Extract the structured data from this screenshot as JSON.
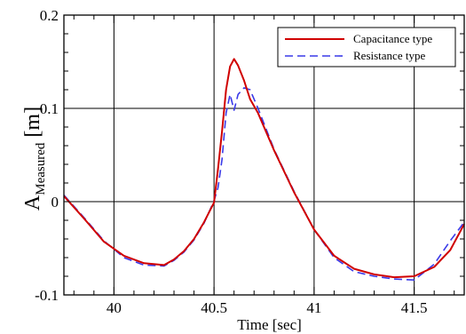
{
  "chart_data": {
    "type": "line",
    "xlabel": "Time [sec]",
    "ylabel": {
      "prefix": "A",
      "subscript": "Measured",
      "unit": "[m]"
    },
    "xlim": [
      39.75,
      41.75
    ],
    "ylim": [
      -0.1,
      0.2
    ],
    "xticks": [
      40,
      40.5,
      41,
      41.5
    ],
    "xtick_labels": [
      "40",
      "40.5",
      "41",
      "41.5"
    ],
    "yticks": [
      -0.1,
      0,
      0.1,
      0.2
    ],
    "ytick_labels": [
      "-0.1",
      "0",
      "0.1",
      "0.2"
    ],
    "grid": true,
    "legend_position": "top-right",
    "series": [
      {
        "name": "Capacitance type",
        "color": "#d00000",
        "style": "solid",
        "x": [
          39.75,
          39.85,
          39.95,
          40.05,
          40.15,
          40.25,
          40.3,
          40.35,
          40.4,
          40.45,
          40.5,
          40.52,
          40.54,
          40.56,
          40.58,
          40.6,
          40.62,
          40.65,
          40.68,
          40.72,
          40.8,
          40.9,
          41.0,
          41.1,
          41.2,
          41.3,
          41.4,
          41.5,
          41.6,
          41.68,
          41.75
        ],
        "y": [
          0.006,
          -0.018,
          -0.043,
          -0.058,
          -0.066,
          -0.068,
          -0.062,
          -0.053,
          -0.04,
          -0.022,
          -0.001,
          0.035,
          0.075,
          0.12,
          0.145,
          0.153,
          0.146,
          0.13,
          0.11,
          0.095,
          0.055,
          0.01,
          -0.03,
          -0.058,
          -0.072,
          -0.078,
          -0.081,
          -0.08,
          -0.07,
          -0.052,
          -0.024
        ]
      },
      {
        "name": "Resistance type",
        "color": "#3a3ae8",
        "style": "dashed",
        "x": [
          39.75,
          39.85,
          39.95,
          40.05,
          40.15,
          40.25,
          40.3,
          40.35,
          40.4,
          40.45,
          40.5,
          40.52,
          40.54,
          40.56,
          40.58,
          40.6,
          40.62,
          40.65,
          40.68,
          40.72,
          40.8,
          40.9,
          41.0,
          41.1,
          41.2,
          41.3,
          41.4,
          41.5,
          41.6,
          41.68,
          41.75
        ],
        "y": [
          0.007,
          -0.017,
          -0.042,
          -0.06,
          -0.068,
          -0.069,
          -0.063,
          -0.054,
          -0.041,
          -0.023,
          0.001,
          0.015,
          0.045,
          0.095,
          0.115,
          0.098,
          0.115,
          0.122,
          0.12,
          0.1,
          0.056,
          0.011,
          -0.03,
          -0.06,
          -0.075,
          -0.08,
          -0.083,
          -0.084,
          -0.067,
          -0.042,
          -0.022
        ]
      }
    ]
  }
}
